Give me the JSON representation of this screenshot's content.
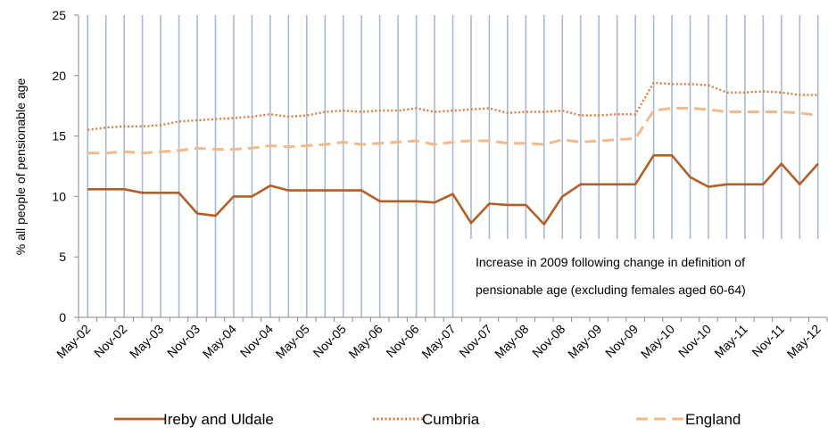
{
  "chart_data": {
    "type": "line",
    "title": "",
    "xlabel": "",
    "ylabel": "% all people of pensionable  age",
    "ylim": [
      0,
      25
    ],
    "yticks": [
      0,
      5,
      10,
      15,
      20,
      25
    ],
    "grid": "vertical gridlines at every data point",
    "categories": [
      "May-02",
      "Aug-02",
      "Nov-02",
      "Feb-03",
      "May-03",
      "Aug-03",
      "Nov-03",
      "Feb-04",
      "May-04",
      "Aug-04",
      "Nov-04",
      "Feb-05",
      "May-05",
      "Aug-05",
      "Nov-05",
      "Feb-06",
      "May-06",
      "Aug-06",
      "Nov-06",
      "Feb-07",
      "May-07",
      "Aug-07",
      "Nov-07",
      "Feb-08",
      "May-08",
      "Aug-08",
      "Nov-08",
      "Feb-09",
      "May-09",
      "Aug-09",
      "Nov-09",
      "Feb-10",
      "May-10",
      "Aug-10",
      "Nov-10",
      "Feb-11",
      "May-11",
      "Aug-11",
      "Nov-11",
      "Feb-12",
      "May-12"
    ],
    "tick_labels": [
      "May-02",
      "Nov-02",
      "May-03",
      "Nov-03",
      "May-04",
      "Nov-04",
      "May-05",
      "Nov-05",
      "May-06",
      "Nov-06",
      "May-07",
      "Nov-07",
      "May-08",
      "Nov-08",
      "May-09",
      "Nov-09",
      "May-10",
      "Nov-10",
      "May-11",
      "Nov-11",
      "May-12"
    ],
    "series": [
      {
        "name": "Ireby and Uldale",
        "style": "solid",
        "color": "#B35E26",
        "values": [
          10.6,
          10.6,
          10.6,
          10.3,
          10.3,
          10.3,
          8.6,
          8.4,
          10.0,
          10.0,
          10.9,
          10.5,
          10.5,
          10.5,
          10.5,
          10.5,
          9.6,
          9.6,
          9.6,
          9.5,
          10.2,
          7.8,
          9.4,
          9.3,
          9.3,
          7.7,
          10.0,
          11.0,
          11.0,
          11.0,
          11.0,
          13.4,
          13.4,
          11.6,
          10.8,
          11.0,
          11.0,
          11.0,
          12.7,
          11.0,
          12.7
        ]
      },
      {
        "name": "Cumbria",
        "style": "dotted",
        "color": "#E07B3A",
        "values": [
          15.5,
          15.7,
          15.8,
          15.8,
          15.9,
          16.2,
          16.3,
          16.4,
          16.5,
          16.6,
          16.8,
          16.6,
          16.7,
          17.0,
          17.1,
          17.0,
          17.1,
          17.1,
          17.3,
          17.0,
          17.1,
          17.2,
          17.3,
          16.9,
          17.0,
          17.0,
          17.1,
          16.7,
          16.7,
          16.8,
          16.8,
          19.4,
          19.3,
          19.3,
          19.2,
          18.6,
          18.6,
          18.7,
          18.6,
          18.4,
          18.4
        ]
      },
      {
        "name": "England",
        "style": "dashed",
        "color": "#F2B98B",
        "values": [
          13.6,
          13.6,
          13.7,
          13.6,
          13.7,
          13.8,
          14.0,
          13.9,
          13.9,
          14.0,
          14.2,
          14.1,
          14.2,
          14.3,
          14.5,
          14.3,
          14.4,
          14.5,
          14.6,
          14.3,
          14.5,
          14.6,
          14.6,
          14.4,
          14.4,
          14.3,
          14.7,
          14.5,
          14.6,
          14.7,
          14.8,
          17.1,
          17.3,
          17.3,
          17.2,
          17.0,
          17.0,
          17.0,
          17.0,
          16.9,
          16.7
        ]
      }
    ],
    "annotation": {
      "line1": "Increase in 2009 following change in definition of",
      "line2": "pensionable age (excluding females aged 60-64)"
    },
    "legend_position": "bottom"
  }
}
